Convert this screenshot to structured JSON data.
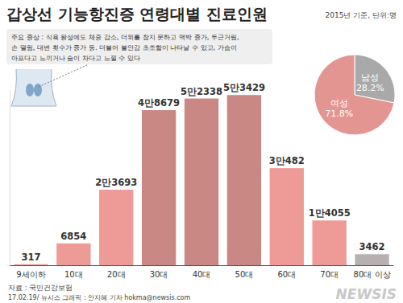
{
  "chart_data": [
    {
      "type": "bar",
      "title": "갑상선 기능항진증 연령대별 진료인원",
      "subtitle": "2015년 기준, 단위:명",
      "categories": [
        "9세이하",
        "10대",
        "20대",
        "30대",
        "40대",
        "50대",
        "60대",
        "70대",
        "80대 이상"
      ],
      "values": [
        317,
        6854,
        23693,
        48679,
        52338,
        53429,
        30482,
        14055,
        3462
      ],
      "value_labels": [
        "317",
        "6854",
        "2만3693",
        "4만8679",
        "5만2338",
        "5만3429",
        "3만482",
        "1만4055",
        "3462"
      ],
      "data_labels": true,
      "colors": [
        "#ee9a96",
        "#ee9a96",
        "#ee9a96",
        "#c98884",
        "#c98884",
        "#c98884",
        "#ee9a96",
        "#ee9a96",
        "#b8b0b0"
      ],
      "ylim": [
        0,
        55000
      ],
      "yticks": [
        0
      ],
      "tick_labels": "x",
      "grid": false,
      "annotations": [
        "주요 증상 : 식욕 왕성에도 체중 감소, 더위를 참지 못하고 맥박 증가, 두근거림,",
        "손 떨림, 대변 횟수가 증가 등. 더불어 불안감 초조함이 나타날 수 있고, 가슴이",
        "아프다고 느끼거나 숨이 차다고 느낄 수 있다",
        "자료 : 국민건강보험",
        "17.02.19/ 뉴시스 그래픽 : 안지혜 기자 hokma@newsis.com",
        "NEWSIS"
      ]
    },
    {
      "type": "pie",
      "categories": [
        "남성",
        "여성"
      ],
      "values": [
        28.2,
        71.8
      ],
      "value_labels": [
        "28.2%",
        "71.8%"
      ],
      "data_labels": true,
      "colors": [
        "#a9a9a9",
        "#e39591"
      ]
    }
  ]
}
